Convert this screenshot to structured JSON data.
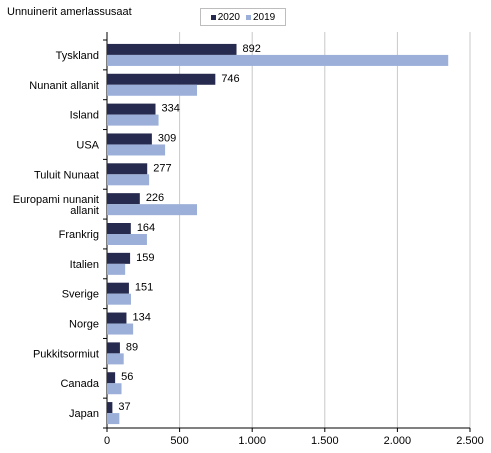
{
  "chart_data": {
    "type": "bar",
    "orientation": "horizontal",
    "title": "Unnuinerit amerlassusaat",
    "categories": [
      "Tyskland",
      "Nunanit allanit",
      "Island",
      "USA",
      "Tuluit Nunaat",
      "Europami nunanit allanit",
      "Frankrig",
      "Italien",
      "Sverige",
      "Norge",
      "Pukkitsormiut",
      "Canada",
      "Japan"
    ],
    "series": [
      {
        "name": "2020",
        "color": "#262a4e",
        "values": [
          892,
          746,
          334,
          309,
          277,
          226,
          164,
          159,
          151,
          134,
          89,
          56,
          37
        ]
      },
      {
        "name": "2019",
        "color": "#9bafd9",
        "values": [
          2350,
          620,
          355,
          400,
          290,
          620,
          275,
          125,
          165,
          180,
          115,
          100,
          85
        ]
      }
    ],
    "data_labels": [
      "892",
      "746",
      "334",
      "309",
      "277",
      "226",
      "164",
      "159",
      "151",
      "134",
      "89",
      "56",
      "37"
    ],
    "xlim": [
      0,
      2500
    ],
    "xticks": [
      "0",
      "500",
      "1.000",
      "1.500",
      "2.000",
      "2.500"
    ],
    "xtick_values": [
      0,
      500,
      1000,
      1500,
      2000,
      2500
    ],
    "grid": "vertical",
    "legend_position": "top"
  }
}
